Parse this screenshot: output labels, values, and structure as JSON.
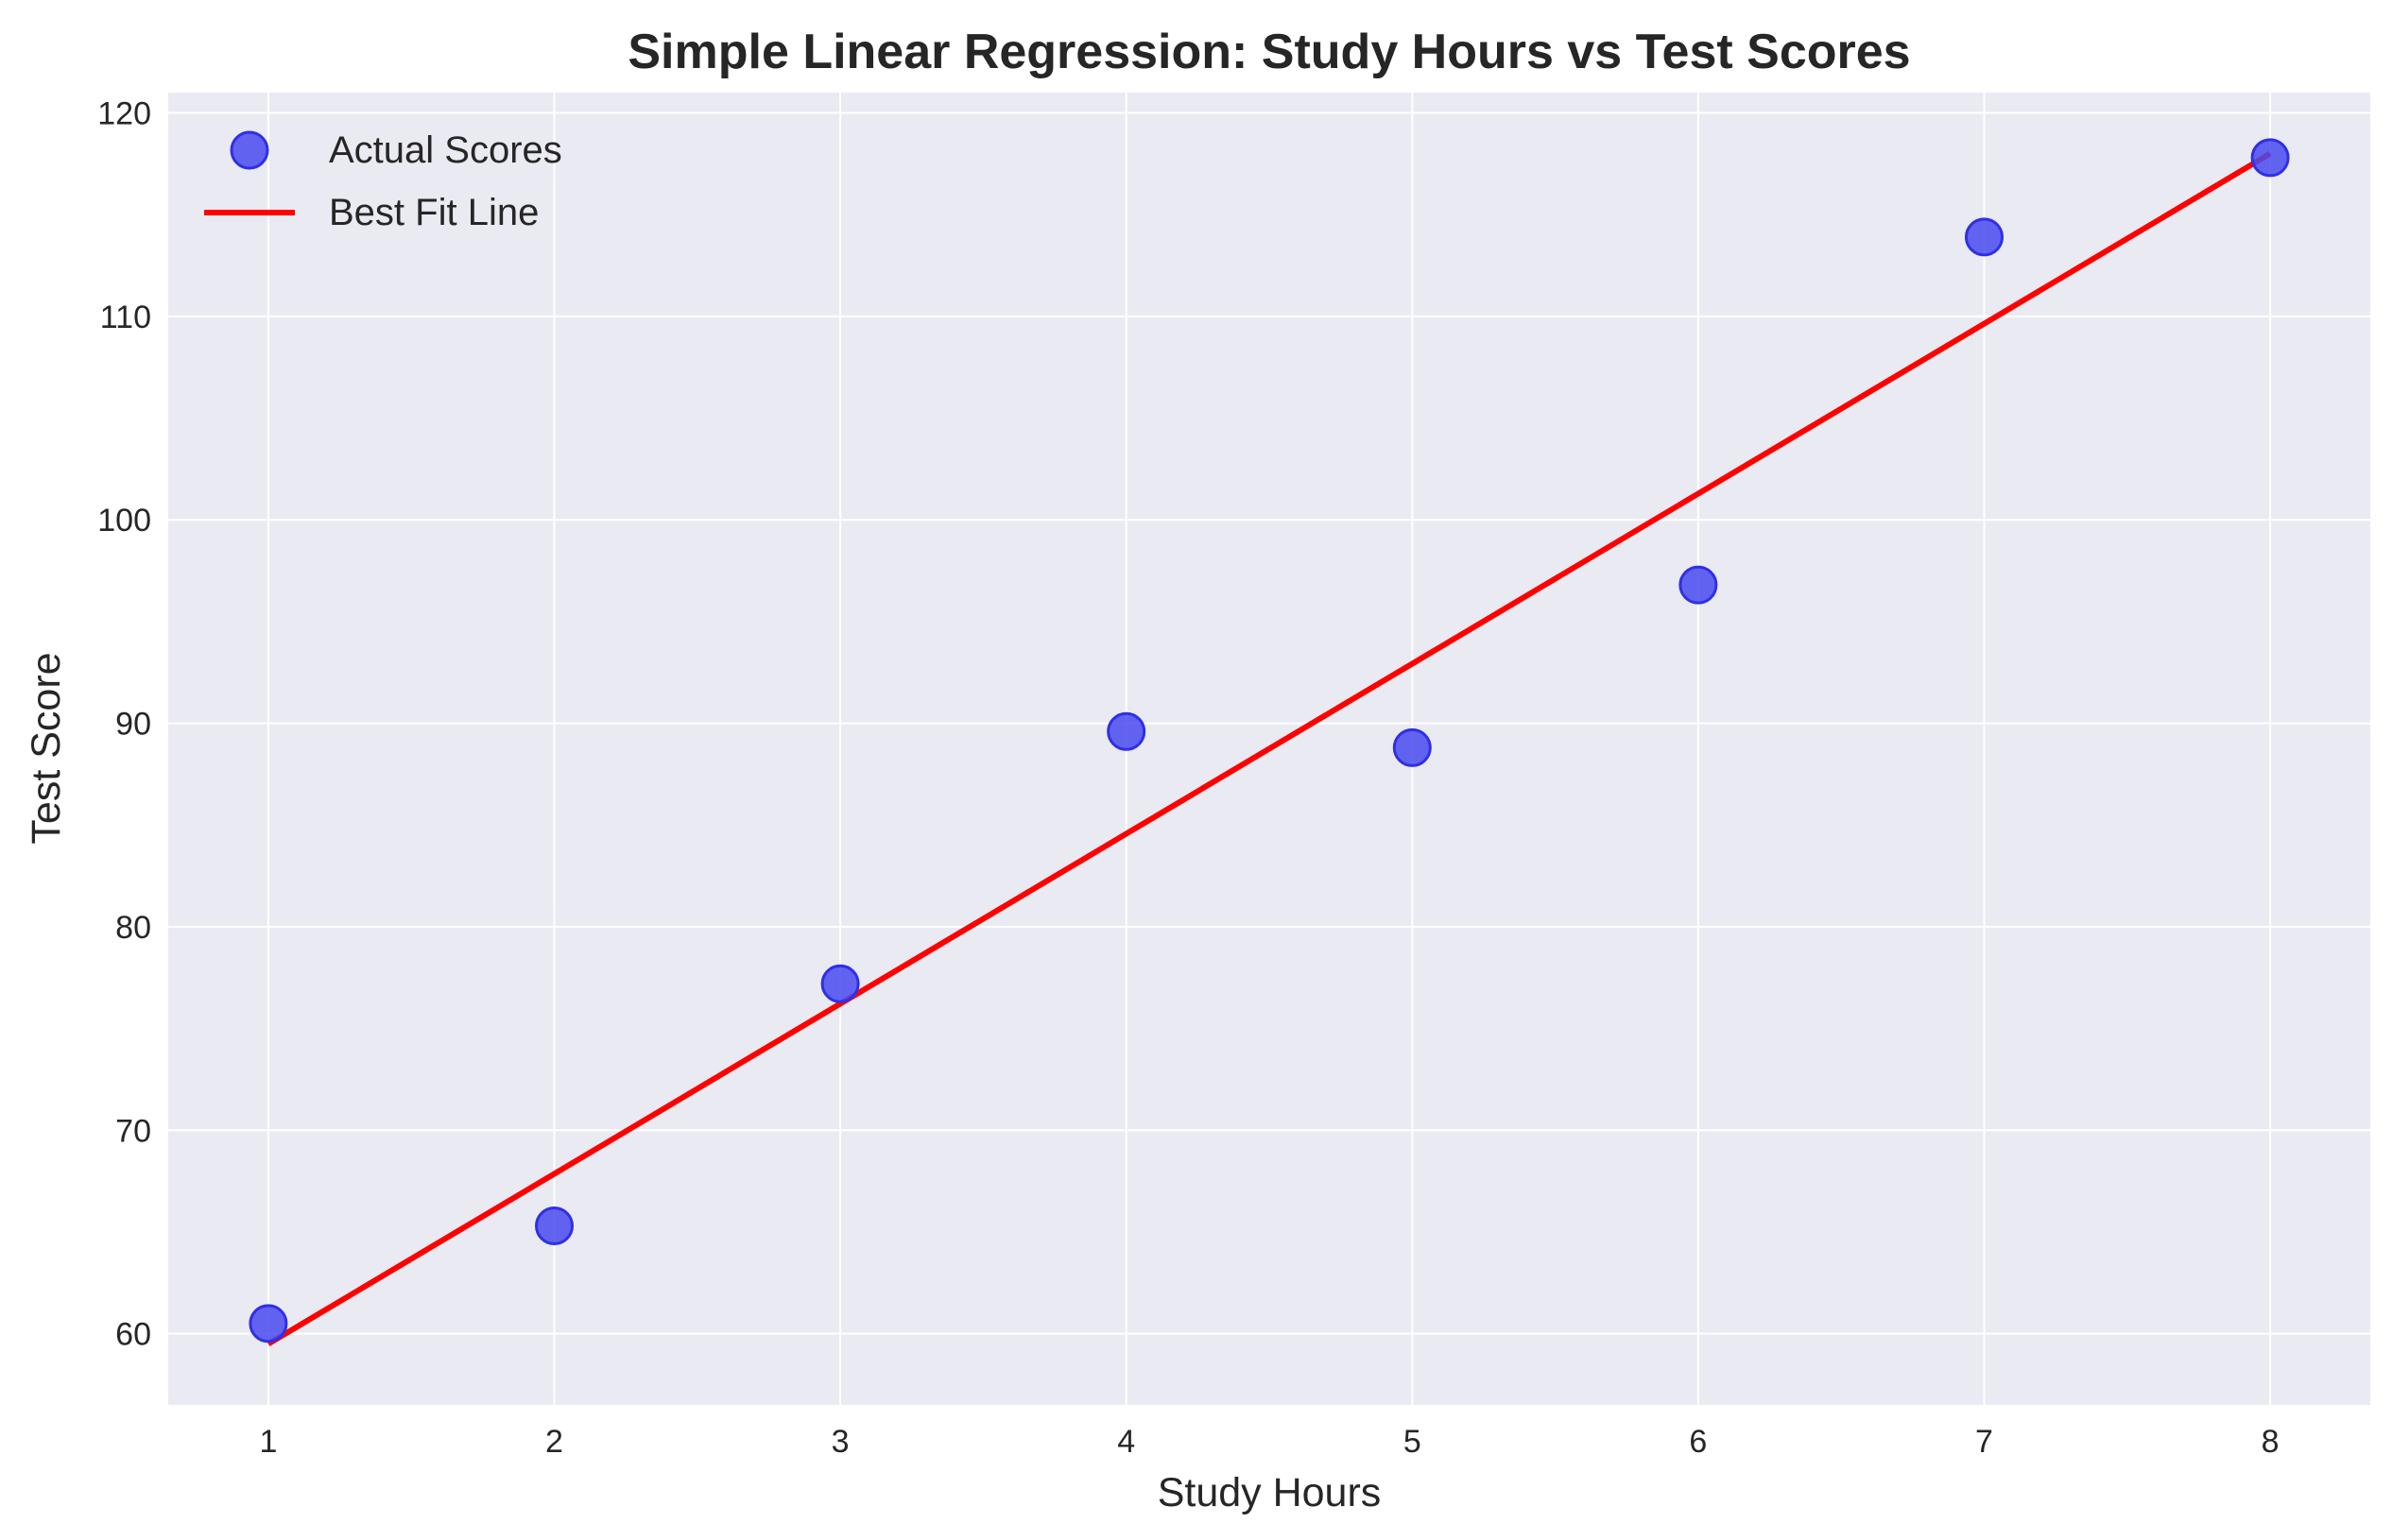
{
  "chart_data": {
    "type": "scatter",
    "title": "Simple Linear Regression: Study Hours vs Test Scores",
    "xlabel": "Study Hours",
    "ylabel": "Test Score",
    "xlim": [
      0.65,
      8.35
    ],
    "ylim": [
      56.5,
      121.0
    ],
    "xticks": [
      1,
      2,
      3,
      4,
      5,
      6,
      7,
      8
    ],
    "yticks": [
      60,
      70,
      80,
      90,
      100,
      110,
      120
    ],
    "grid": true,
    "legend_position": "top-left",
    "series": [
      {
        "name": "Actual Scores",
        "kind": "scatter",
        "color": "#4a4af0",
        "edge_color": "#2f2fe8",
        "x": [
          1,
          2,
          3,
          4,
          5,
          6,
          7,
          8
        ],
        "y": [
          60.5,
          65.3,
          77.2,
          89.6,
          88.8,
          96.8,
          113.9,
          117.8
        ]
      },
      {
        "name": "Best Fit Line",
        "kind": "line",
        "color": "#ff0000",
        "x": [
          1,
          8
        ],
        "y": [
          59.5,
          118.0
        ]
      }
    ],
    "background_color": "#eaeaf2",
    "grid_color": "#ffffff"
  }
}
